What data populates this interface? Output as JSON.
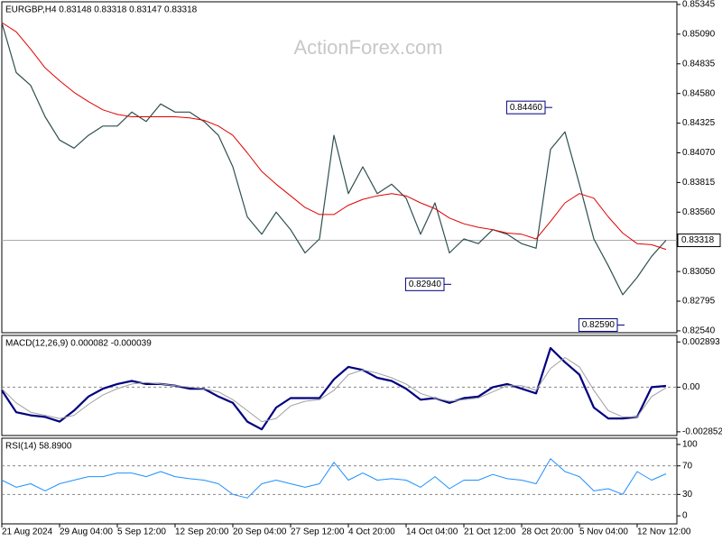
{
  "chart_data": [
    {
      "type": "line",
      "title": "EURGBP,H4 0.83148 0.83318 0.83147 0.83318",
      "watermark": "ActionForex.com",
      "ylim": [
        0.82524,
        0.85368
      ],
      "yticks": [
        0.85345,
        {
          "value": 0.8509,
          "label": "0.85090"
        },
        0.84835,
        {
          "value": 0.8458,
          "label": "0.84580"
        },
        0.84325,
        {
          "value": 0.8407,
          "label": "0.84070"
        },
        0.83815,
        {
          "value": 0.8356,
          "label": "0.83560"
        },
        {
          "value": 0.8305,
          "label": "0.83050"
        },
        0.82795,
        {
          "value": 0.8254,
          "label": "0.82540"
        }
      ],
      "series": [
        {
          "color": "#2f4f4f",
          "line_width": 1.2,
          "values": [
            0.8519,
            0.8476,
            0.8465,
            0.8438,
            0.8418,
            0.8411,
            0.8422,
            0.843,
            0.843,
            0.8442,
            0.8434,
            0.8449,
            0.8442,
            0.8442,
            0.8434,
            0.8422,
            0.8395,
            0.8352,
            0.8337,
            0.8356,
            0.8341,
            0.8321,
            0.8333,
            0.8422,
            0.8372,
            0.8395,
            0.8372,
            0.838,
            0.8368,
            0.8337,
            0.8364,
            0.8321,
            0.8333,
            0.8329,
            0.8341,
            0.8337,
            0.8329,
            0.8325,
            0.841,
            0.8425,
            0.838,
            0.8333,
            0.831,
            0.8285,
            0.83,
            0.8318,
            0.83318
          ]
        },
        {
          "color": "#e00000",
          "line_width": 1,
          "values": [
            0.8519,
            0.8511,
            0.8496,
            0.848,
            0.8469,
            0.8459,
            0.8451,
            0.8444,
            0.844,
            0.8438,
            0.8438,
            0.8438,
            0.8438,
            0.8437,
            0.8435,
            0.843,
            0.8422,
            0.8407,
            0.8391,
            0.838,
            0.837,
            0.836,
            0.8354,
            0.8354,
            0.8362,
            0.8367,
            0.837,
            0.8372,
            0.837,
            0.8364,
            0.8359,
            0.8351,
            0.8346,
            0.8343,
            0.8341,
            0.8338,
            0.8337,
            0.8333,
            0.8348,
            0.8364,
            0.8372,
            0.8368,
            0.8352,
            0.8338,
            0.8329,
            0.8328,
            0.8324
          ]
        }
      ],
      "last_price": 0.83318,
      "annotations": [
        {
          "value": 0.8446,
          "label": "0.84460",
          "at": 38
        },
        {
          "value": 0.8294,
          "label": "0.82940",
          "at": 31
        },
        {
          "value": 0.8259,
          "label": "0.82590",
          "at": 43
        }
      ]
    },
    {
      "type": "line",
      "title": "MACD(12,26,9) 0.000082 -0.000039",
      "ylim": [
        -0.00309,
        0.00331
      ],
      "yticks": [
        0.002893,
        {
          "value": 0,
          "label": "0.00"
        },
        -0.002852
      ],
      "zero_line": true,
      "series": [
        {
          "color": "#000080",
          "line_width": 2.2,
          "values": [
            -0.0002,
            -0.0016,
            -0.0018,
            -0.0019,
            -0.0022,
            -0.0015,
            -0.0006,
            -0.0001,
            0.0002,
            0.0004,
            0.0002,
            0.0002,
            0.0001,
            -0.0001,
            -0.0001,
            -0.0006,
            -0.001,
            -0.0022,
            -0.0027,
            -0.0013,
            -0.0007,
            -0.0007,
            -0.0007,
            0.0005,
            0.0013,
            0.0011,
            0.0006,
            0.0004,
            -0.0001,
            -0.0008,
            -0.0007,
            -0.001,
            -0.0007,
            -0.0006,
            0.0,
            0.0002,
            -0.0001,
            -0.0004,
            0.0025,
            0.0016,
            0.0008,
            -0.0013,
            -0.002,
            -0.002,
            -0.0019,
            0.0,
            8.2e-05
          ]
        },
        {
          "color": "#a0a0a0",
          "line_width": 1,
          "values": [
            -0.0001,
            -0.001,
            -0.0016,
            -0.0018,
            -0.002,
            -0.0018,
            -0.0011,
            -0.0005,
            -0.0001,
            0.0002,
            0.0003,
            0.0002,
            0.0001,
            0.0,
            -0.0001,
            -0.0003,
            -0.0008,
            -0.0015,
            -0.0022,
            -0.002,
            -0.0012,
            -0.0009,
            -0.0008,
            -0.0002,
            0.0008,
            0.0011,
            0.0009,
            0.0006,
            0.0002,
            -0.0004,
            -0.0007,
            -0.0009,
            -0.0008,
            -0.0007,
            -0.0003,
            0.0001,
            0.0001,
            -0.0002,
            0.0012,
            0.0019,
            0.0013,
            -0.0002,
            -0.0015,
            -0.0019,
            -0.0019,
            -0.0006,
            -3.9e-05
          ]
        }
      ]
    },
    {
      "type": "line",
      "title": "RSI(14) 58.8900",
      "ylim": [
        -11.25,
        108.75
      ],
      "yticks": [
        100,
        70,
        30,
        0
      ],
      "levels": [
        70,
        30
      ],
      "series": [
        {
          "color": "#1e90ff",
          "line_width": 1,
          "values": [
            50,
            40,
            45,
            35,
            45,
            50,
            55,
            55,
            60,
            60,
            55,
            62,
            55,
            52,
            50,
            45,
            30,
            25,
            45,
            50,
            45,
            40,
            45,
            75,
            50,
            60,
            50,
            52,
            50,
            40,
            55,
            38,
            50,
            50,
            58,
            52,
            50,
            45,
            80,
            62,
            55,
            35,
            38,
            30,
            62,
            50,
            58.89
          ]
        }
      ],
      "categories": [
        "21 Aug 2024",
        null,
        null,
        null,
        "29 Aug 04:00",
        null,
        null,
        null,
        "5 Sep 12:00",
        null,
        null,
        null,
        "12 Sep 20:00",
        null,
        null,
        null,
        "20 Sep 04:00",
        null,
        null,
        null,
        "27 Sep 12:00",
        null,
        null,
        null,
        "4 Oct 20:00",
        null,
        null,
        null,
        "14 Oct 04:00",
        null,
        null,
        null,
        "21 Oct 12:00",
        null,
        null,
        null,
        "28 Oct 20:00",
        null,
        null,
        null,
        "5 Nov 04:00",
        null,
        null,
        null,
        "12 Nov 12:00",
        null,
        null
      ]
    }
  ]
}
